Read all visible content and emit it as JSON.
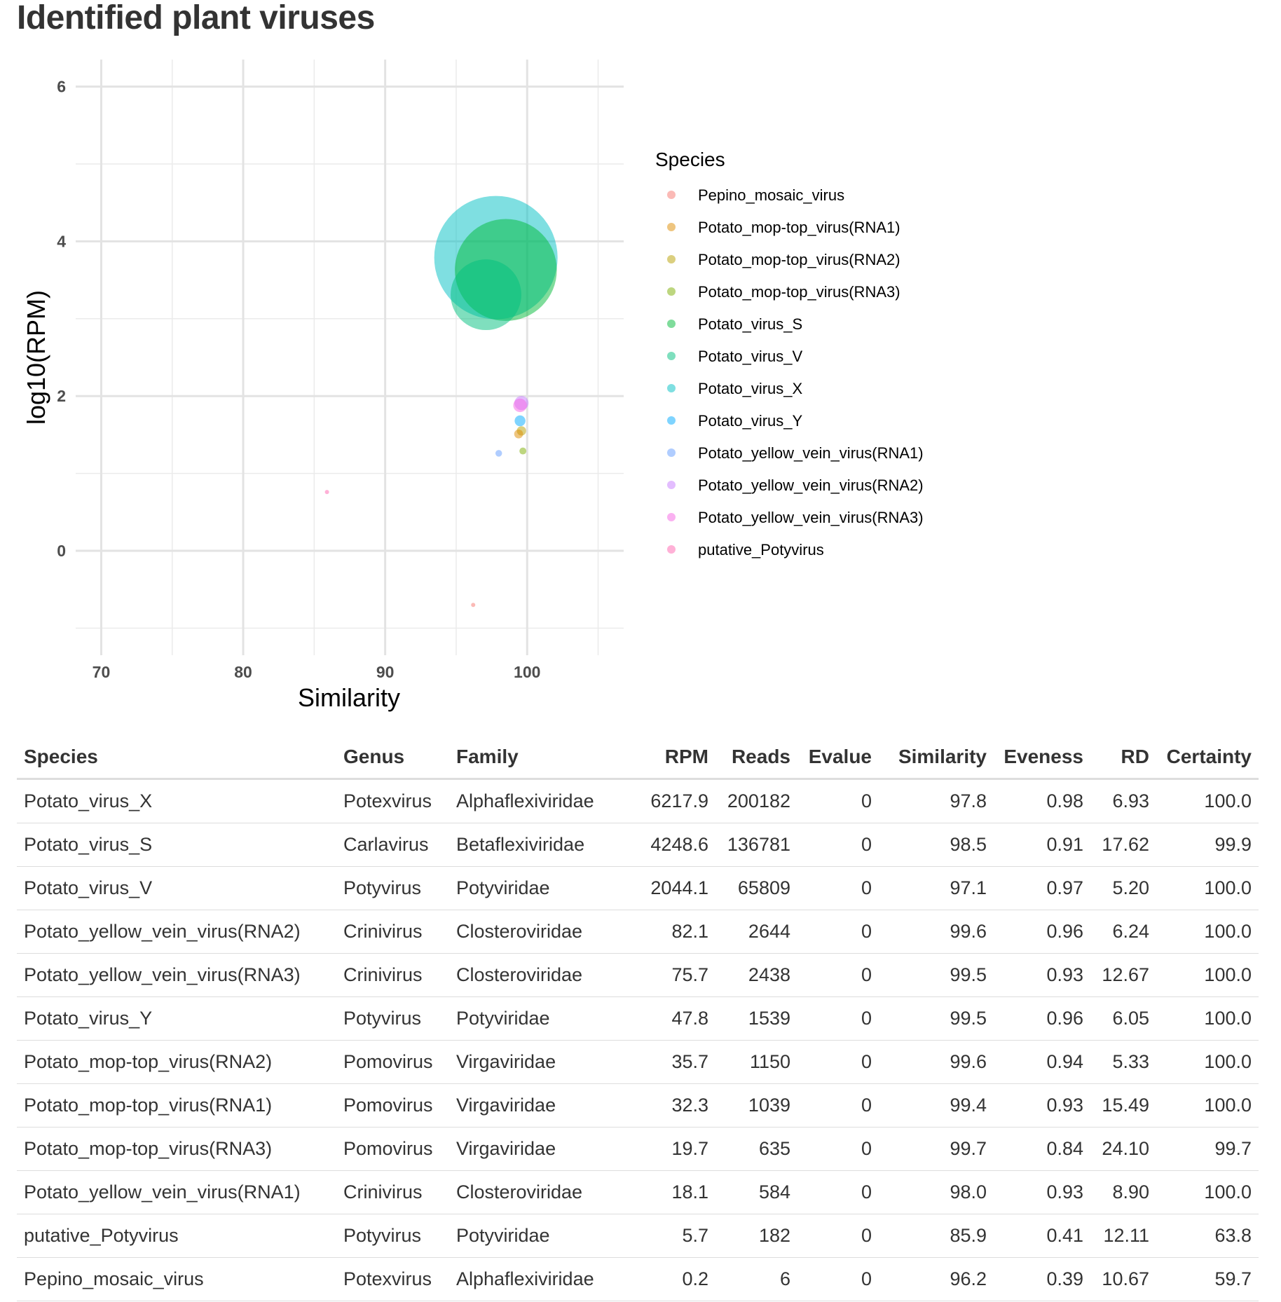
{
  "page": {
    "title": "Identified plant viruses"
  },
  "chart_data": {
    "type": "scatter",
    "title": "",
    "xlabel": "Similarity",
    "ylabel": "log10(RPM)",
    "xlim": [
      68.2,
      106.8
    ],
    "ylim": [
      -1.35,
      6.35
    ],
    "xticks": [
      70,
      80,
      90,
      100
    ],
    "yticks": [
      0,
      2,
      4,
      6
    ],
    "grid": true,
    "legend": {
      "title": "Species",
      "position": "right"
    },
    "size_by": "Reads",
    "opacity": 0.5,
    "series": [
      {
        "name": "Pepino_mosaic_virus",
        "color": "#F8766D",
        "x": 96.2,
        "y": -0.7,
        "reads": 6
      },
      {
        "name": "Potato_mop-top_virus(RNA1)",
        "color": "#DE8C00",
        "x": 99.4,
        "y": 1.51,
        "reads": 1039
      },
      {
        "name": "Potato_mop-top_virus(RNA2)",
        "color": "#B79F00",
        "x": 99.6,
        "y": 1.55,
        "reads": 1150
      },
      {
        "name": "Potato_mop-top_virus(RNA3)",
        "color": "#7CAE00",
        "x": 99.7,
        "y": 1.29,
        "reads": 635
      },
      {
        "name": "Potato_virus_S",
        "color": "#00BA38",
        "x": 98.5,
        "y": 3.63,
        "reads": 136781
      },
      {
        "name": "Potato_virus_V",
        "color": "#00BF7D",
        "x": 97.1,
        "y": 3.31,
        "reads": 65809
      },
      {
        "name": "Potato_virus_X",
        "color": "#00BFC4",
        "x": 97.8,
        "y": 3.79,
        "reads": 200182
      },
      {
        "name": "Potato_virus_Y",
        "color": "#00A9FF",
        "x": 99.5,
        "y": 1.68,
        "reads": 1539
      },
      {
        "name": "Potato_yellow_vein_virus(RNA1)",
        "color": "#619CFF",
        "x": 98.0,
        "y": 1.26,
        "reads": 584
      },
      {
        "name": "Potato_yellow_vein_virus(RNA2)",
        "color": "#C77CFF",
        "x": 99.6,
        "y": 1.91,
        "reads": 2644
      },
      {
        "name": "Potato_yellow_vein_virus(RNA3)",
        "color": "#F564E3",
        "x": 99.5,
        "y": 1.88,
        "reads": 2438
      },
      {
        "name": "putative_Potyvirus",
        "color": "#FF64B0",
        "x": 85.9,
        "y": 0.76,
        "reads": 182
      }
    ]
  },
  "table": {
    "columns": [
      "Species",
      "Genus",
      "Family",
      "RPM",
      "Reads",
      "Evalue",
      "Similarity",
      "Eveness",
      "RD",
      "Certainty"
    ],
    "rows": [
      [
        "Potato_virus_X",
        "Potexvirus",
        "Alphaflexiviridae",
        "6217.9",
        "200182",
        "0",
        "97.8",
        "0.98",
        "6.93",
        "100.0"
      ],
      [
        "Potato_virus_S",
        "Carlavirus",
        "Betaflexiviridae",
        "4248.6",
        "136781",
        "0",
        "98.5",
        "0.91",
        "17.62",
        "99.9"
      ],
      [
        "Potato_virus_V",
        "Potyvirus",
        "Potyviridae",
        "2044.1",
        "65809",
        "0",
        "97.1",
        "0.97",
        "5.20",
        "100.0"
      ],
      [
        "Potato_yellow_vein_virus(RNA2)",
        "Crinivirus",
        "Closteroviridae",
        "82.1",
        "2644",
        "0",
        "99.6",
        "0.96",
        "6.24",
        "100.0"
      ],
      [
        "Potato_yellow_vein_virus(RNA3)",
        "Crinivirus",
        "Closteroviridae",
        "75.7",
        "2438",
        "0",
        "99.5",
        "0.93",
        "12.67",
        "100.0"
      ],
      [
        "Potato_virus_Y",
        "Potyvirus",
        "Potyviridae",
        "47.8",
        "1539",
        "0",
        "99.5",
        "0.96",
        "6.05",
        "100.0"
      ],
      [
        "Potato_mop-top_virus(RNA2)",
        "Pomovirus",
        "Virgaviridae",
        "35.7",
        "1150",
        "0",
        "99.6",
        "0.94",
        "5.33",
        "100.0"
      ],
      [
        "Potato_mop-top_virus(RNA1)",
        "Pomovirus",
        "Virgaviridae",
        "32.3",
        "1039",
        "0",
        "99.4",
        "0.93",
        "15.49",
        "100.0"
      ],
      [
        "Potato_mop-top_virus(RNA3)",
        "Pomovirus",
        "Virgaviridae",
        "19.7",
        "635",
        "0",
        "99.7",
        "0.84",
        "24.10",
        "99.7"
      ],
      [
        "Potato_yellow_vein_virus(RNA1)",
        "Crinivirus",
        "Closteroviridae",
        "18.1",
        "584",
        "0",
        "98.0",
        "0.93",
        "8.90",
        "100.0"
      ],
      [
        "putative_Potyvirus",
        "Potyvirus",
        "Potyviridae",
        "5.7",
        "182",
        "0",
        "85.9",
        "0.41",
        "12.11",
        "63.8"
      ],
      [
        "Pepino_mosaic_virus",
        "Potexvirus",
        "Alphaflexiviridae",
        "0.2",
        "6",
        "0",
        "96.2",
        "0.39",
        "10.67",
        "59.7"
      ]
    ]
  }
}
